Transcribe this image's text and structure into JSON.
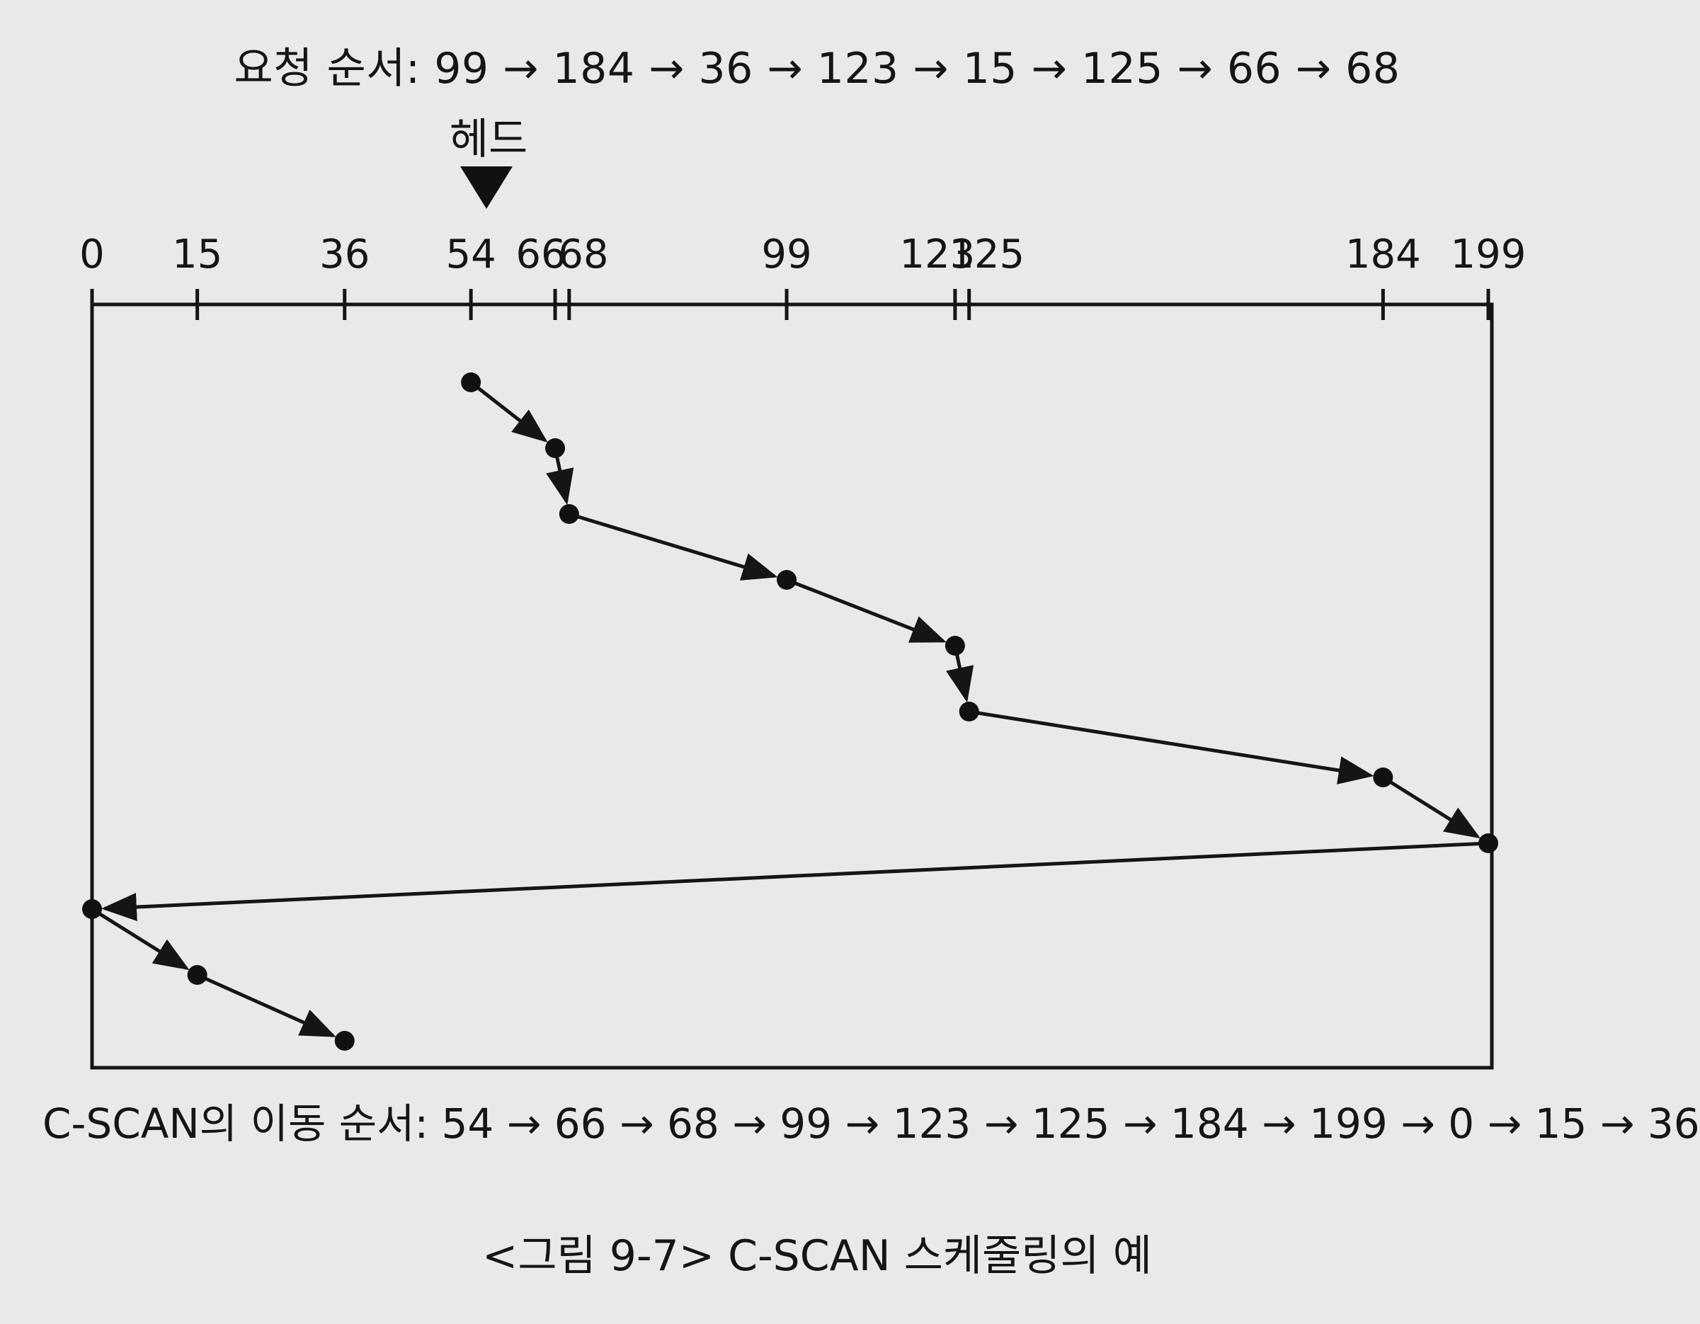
{
  "request_order": {
    "label": "요청 순서:",
    "sequence": [
      99,
      184,
      36,
      123,
      15,
      125,
      66,
      68
    ]
  },
  "head": {
    "label": "헤드",
    "position": 54
  },
  "axis": {
    "min": 0,
    "max": 199,
    "ticks": [
      0,
      15,
      36,
      54,
      66,
      68,
      99,
      123,
      125,
      184,
      199
    ]
  },
  "movement_order": {
    "label": "C-SCAN의 이동 순서:",
    "sequence": [
      54,
      66,
      68,
      99,
      123,
      125,
      184,
      199,
      0,
      15,
      36
    ]
  },
  "caption": "<그림 9-7> C-SCAN 스케줄링의 예",
  "arrow_symbol": "→"
}
